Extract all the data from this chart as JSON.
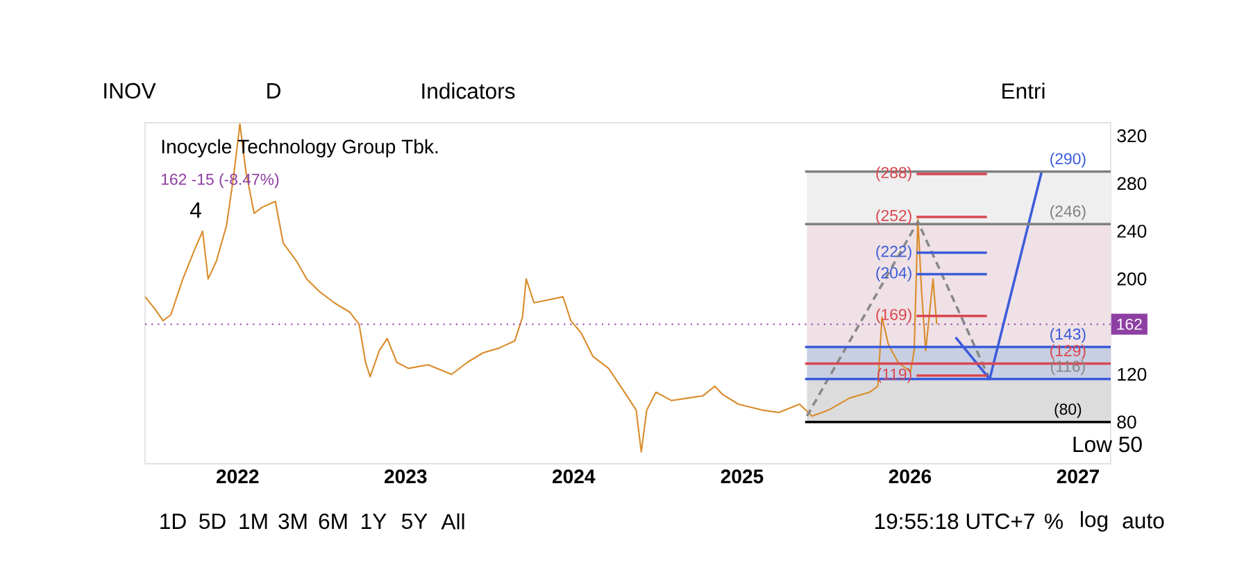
{
  "chart_data": {
    "type": "line",
    "title": "Inocycle Technology Group Tbk.",
    "subtitle": "162  -15 (-8.47%)",
    "xlim": [
      "2021-06-14",
      "2027-03-13"
    ],
    "ylim": [
      45,
      331
    ],
    "xticks": [
      {
        "value": "2022-01-01",
        "label": "2022"
      },
      {
        "value": "2023-01-01",
        "label": "2023"
      },
      {
        "value": "2024-01-01",
        "label": "2024"
      },
      {
        "value": "2025-01-01",
        "label": "2025"
      },
      {
        "value": "2026-01-01",
        "label": "2026"
      },
      {
        "value": "2027-01-01",
        "label": "2027"
      }
    ],
    "yticks": [
      80,
      120,
      200,
      240,
      280,
      320
    ],
    "series": [
      {
        "color": "#d98c2b",
        "x": [
          "2021-06-14",
          "2021-07-05",
          "2021-07-23",
          "2021-08-09",
          "2021-09-04",
          "2021-09-30",
          "2021-10-17",
          "2021-10-29",
          "2021-11-16",
          "2021-12-08",
          "2021-12-23",
          "2022-01-06",
          "2022-01-19",
          "2022-02-06",
          "2022-02-23",
          "2022-03-24",
          "2022-04-10",
          "2022-05-09",
          "2022-05-31",
          "2022-06-26",
          "2022-07-30",
          "2022-09-02",
          "2022-09-22",
          "2022-10-06",
          "2022-10-16",
          "2022-11-05",
          "2022-11-22",
          "2022-12-13",
          "2023-01-07",
          "2023-02-19",
          "2023-04-11",
          "2023-05-15",
          "2023-06-18",
          "2023-07-23",
          "2023-08-26",
          "2023-09-12",
          "2023-09-20",
          "2023-10-07",
          "2023-11-02",
          "2023-12-09",
          "2023-12-26",
          "2024-01-17",
          "2024-02-12",
          "2024-03-17",
          "2024-04-12",
          "2024-04-29",
          "2024-05-16",
          "2024-05-27",
          "2024-06-08",
          "2024-06-28",
          "2024-08-01",
          "2024-09-04",
          "2024-10-08",
          "2024-11-03",
          "2024-11-20",
          "2024-12-24",
          "2025-02-14",
          "2025-03-22",
          "2025-05-06",
          "2025-06-02",
          "2025-07-08",
          "2025-08-22",
          "2025-10-05",
          "2025-10-23",
          "2025-11-01",
          "2025-11-15",
          "2025-12-06",
          "2026-01-02",
          "2026-01-10",
          "2026-01-18",
          "2026-01-26",
          "2026-02-04",
          "2026-02-12",
          "2026-02-20",
          "2026-02-28"
        ],
        "values": [
          185,
          175,
          165,
          170,
          200,
          225,
          240,
          200,
          215,
          245,
          285,
          330,
          290,
          255,
          260,
          265,
          230,
          215,
          200,
          190,
          180,
          172,
          162,
          130,
          118,
          140,
          150,
          130,
          125,
          128,
          120,
          130,
          138,
          142,
          148,
          168,
          200,
          180,
          182,
          185,
          165,
          155,
          135,
          125,
          110,
          100,
          90,
          55,
          90,
          105,
          98,
          100,
          102,
          110,
          103,
          95,
          90,
          88,
          95,
          85,
          90,
          100,
          105,
          110,
          168,
          145,
          130,
          122,
          140,
          250,
          190,
          140,
          170,
          200,
          162
        ]
      },
      {
        "color": "#888888",
        "line_style": "dashed",
        "x": [
          "2025-05-22",
          "2026-01-18",
          "2026-06-23"
        ],
        "values": [
          85,
          248,
          116
        ]
      },
      {
        "color": "#3b5bdb",
        "x": [
          "2026-04-10",
          "2026-06-23",
          "2026-10-14"
        ],
        "values": [
          151,
          116,
          290
        ]
      },
      {
        "color": "#000000",
        "x": [
          "2025-05-18",
          "2027-03-13"
        ],
        "values": [
          80,
          80
        ]
      },
      {
        "color": "#3b5bdb",
        "x": [
          "2025-05-18",
          "2027-03-13"
        ],
        "values": [
          116,
          116
        ]
      },
      {
        "color": "#d9474f",
        "x": [
          "2025-05-18",
          "2027-03-13"
        ],
        "values": [
          129,
          129
        ]
      },
      {
        "color": "#3b5bdb",
        "x": [
          "2025-05-18",
          "2027-03-13"
        ],
        "values": [
          143,
          143
        ]
      },
      {
        "color": "#808080",
        "x": [
          "2025-05-18",
          "2027-03-13"
        ],
        "values": [
          246,
          246
        ]
      },
      {
        "color": "#808080",
        "x": [
          "2025-05-18",
          "2027-03-13"
        ],
        "values": [
          290,
          290
        ]
      },
      {
        "color": "#d9474f",
        "x": [
          "2026-01-15",
          "2026-06-17"
        ],
        "values": [
          288,
          288
        ]
      },
      {
        "color": "#d9474f",
        "x": [
          "2026-01-15",
          "2026-06-17"
        ],
        "values": [
          252,
          252
        ]
      },
      {
        "color": "#3b5bdb",
        "x": [
          "2026-01-15",
          "2026-06-17"
        ],
        "values": [
          222,
          222
        ]
      },
      {
        "color": "#3b5bdb",
        "x": [
          "2026-01-15",
          "2026-06-17"
        ],
        "values": [
          204,
          204
        ]
      },
      {
        "color": "#d9474f",
        "x": [
          "2026-01-15",
          "2026-06-17"
        ],
        "values": [
          169,
          169
        ]
      },
      {
        "color": "#d9474f",
        "x": [
          "2026-01-15",
          "2026-06-17"
        ],
        "values": [
          119,
          119
        ]
      }
    ],
    "bands": [
      {
        "axis": "y",
        "from": 80,
        "to": 116,
        "color": "#dcdcdc"
      },
      {
        "axis": "y",
        "from": 116,
        "to": 143,
        "color": "#c8cfe2"
      },
      {
        "axis": "y",
        "from": 143,
        "to": 246,
        "color": "#efe1e5"
      },
      {
        "axis": "y",
        "from": 246,
        "to": 290,
        "color": "#efefef"
      }
    ],
    "ref_lines": [
      {
        "axis": "y",
        "value": 162,
        "label": "162",
        "color": "#8e3fa3",
        "line_style": "dotted"
      }
    ],
    "annotations": [
      {
        "text": "(288)",
        "x": "2026-01-15",
        "y": 288
      },
      {
        "text": "(252)",
        "x": "2026-01-15",
        "y": 252
      },
      {
        "text": "(222)",
        "x": "2026-01-15",
        "y": 222
      },
      {
        "text": "(204)",
        "x": "2026-01-15",
        "y": 204
      },
      {
        "text": "(169)",
        "x": "2026-01-15",
        "y": 169
      },
      {
        "text": "(119)",
        "x": "2026-01-15",
        "y": 119
      },
      {
        "text": "(290)",
        "x": "2026-12-10",
        "y": 290
      },
      {
        "text": "(246)",
        "x": "2026-12-10",
        "y": 246
      },
      {
        "text": "(143)",
        "x": "2026-12-10",
        "y": 143
      },
      {
        "text": "(129)",
        "x": "2026-12-10",
        "y": 129
      },
      {
        "text": "(116)",
        "x": "2026-12-10",
        "y": 116
      },
      {
        "text": "(80)",
        "x": "2026-12-10",
        "y": 80
      },
      "Low 50",
      "INOV",
      "D",
      "Indicators",
      "Entri",
      "4",
      "1D",
      "5D",
      "1M",
      "3M",
      "6M",
      "1Y",
      "5Y",
      "All",
      "19:55:18 UTC+7",
      "%",
      "log",
      "auto"
    ]
  }
}
